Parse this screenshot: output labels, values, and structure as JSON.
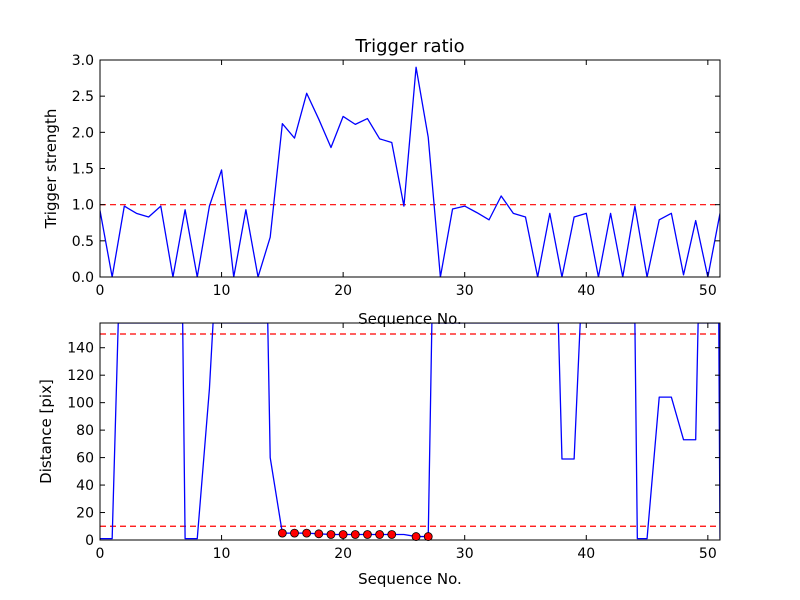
{
  "figure": {
    "background": "#ffffff",
    "line_color": "#0000ff",
    "threshold_color": "#ff0000",
    "marker_color": "#ff0000"
  },
  "chart_data": [
    {
      "type": "line",
      "title": "Trigger ratio",
      "xlabel": "Sequence No.",
      "ylabel": "Trigger strength",
      "xlim": [
        0,
        51
      ],
      "ylim": [
        0,
        3.0
      ],
      "xticks": [
        0,
        10,
        20,
        30,
        40,
        50
      ],
      "xtick_labels": [
        "0",
        "10",
        "20",
        "30",
        "40",
        "50"
      ],
      "yticks": [
        0,
        0.5,
        1.0,
        1.5,
        2.0,
        2.5,
        3.0
      ],
      "ytick_labels": [
        "0.0",
        "0.5",
        "1.0",
        "1.5",
        "2.0",
        "2.5",
        "3.0"
      ],
      "grid": false,
      "hlines": [
        1.0
      ],
      "series": [
        {
          "x": [
            0,
            1,
            2,
            3,
            4,
            5,
            6,
            7,
            8,
            9,
            10,
            11,
            12,
            13,
            14,
            15,
            16,
            17,
            18,
            19,
            20,
            21,
            22,
            23,
            24,
            25,
            26,
            27,
            28,
            29,
            30,
            31,
            32,
            33,
            34,
            35,
            36,
            37,
            38,
            39,
            40,
            41,
            42,
            43,
            44,
            45,
            46,
            47,
            48,
            49,
            50,
            51
          ],
          "y": [
            0.92,
            0.0,
            0.98,
            0.88,
            0.83,
            0.98,
            0.0,
            0.93,
            0.0,
            0.98,
            1.48,
            0.0,
            0.93,
            0.0,
            0.55,
            2.12,
            1.92,
            2.54,
            2.18,
            1.79,
            2.22,
            2.11,
            2.19,
            1.91,
            1.86,
            0.98,
            2.9,
            1.93,
            0.0,
            0.94,
            0.98,
            0.89,
            0.79,
            1.12,
            0.88,
            0.83,
            0.0,
            0.88,
            0.0,
            0.83,
            0.88,
            0.0,
            0.88,
            0.0,
            0.98,
            0.0,
            0.79,
            0.88,
            0.03,
            0.78,
            0.0,
            0.88
          ]
        }
      ]
    },
    {
      "type": "line",
      "title": "",
      "xlabel": "Sequence No.",
      "ylabel": "Distance [pix]",
      "xlim": [
        0,
        51
      ],
      "ylim": [
        0,
        158
      ],
      "xticks": [
        0,
        10,
        20,
        30,
        40,
        50
      ],
      "xtick_labels": [
        "0",
        "10",
        "20",
        "30",
        "40",
        "50"
      ],
      "yticks": [
        0,
        20,
        40,
        60,
        80,
        100,
        120,
        140
      ],
      "ytick_labels": [
        "0",
        "20",
        "40",
        "60",
        "80",
        "100",
        "120",
        "140"
      ],
      "grid": false,
      "hlines": [
        10,
        150
      ],
      "series": [
        {
          "x": [
            0,
            1,
            1.5,
            6.8,
            7,
            8,
            9,
            9.3,
            13.8,
            14,
            15,
            16,
            17,
            18,
            19,
            20,
            21,
            22,
            23,
            24,
            25,
            26,
            27,
            27.3,
            37.7,
            38,
            39,
            39.5,
            44,
            44.2,
            45,
            46,
            47,
            48,
            49,
            49.2,
            50.9,
            51
          ],
          "y": [
            1,
            1,
            158,
            158,
            1,
            1,
            110,
            158,
            158,
            60,
            5,
            5,
            5,
            4.5,
            4,
            4,
            4,
            4,
            4,
            4,
            4,
            2.5,
            2.5,
            158,
            158,
            59,
            59,
            158,
            158,
            1,
            1,
            104,
            104,
            73,
            73,
            158,
            158,
            1
          ]
        }
      ],
      "markers": {
        "x": [
          15,
          16,
          17,
          18,
          19,
          20,
          21,
          22,
          23,
          24,
          26,
          27
        ],
        "y": [
          5,
          5,
          5,
          4.5,
          4,
          4,
          4,
          4,
          4,
          4,
          2.5,
          2.5
        ]
      }
    }
  ]
}
